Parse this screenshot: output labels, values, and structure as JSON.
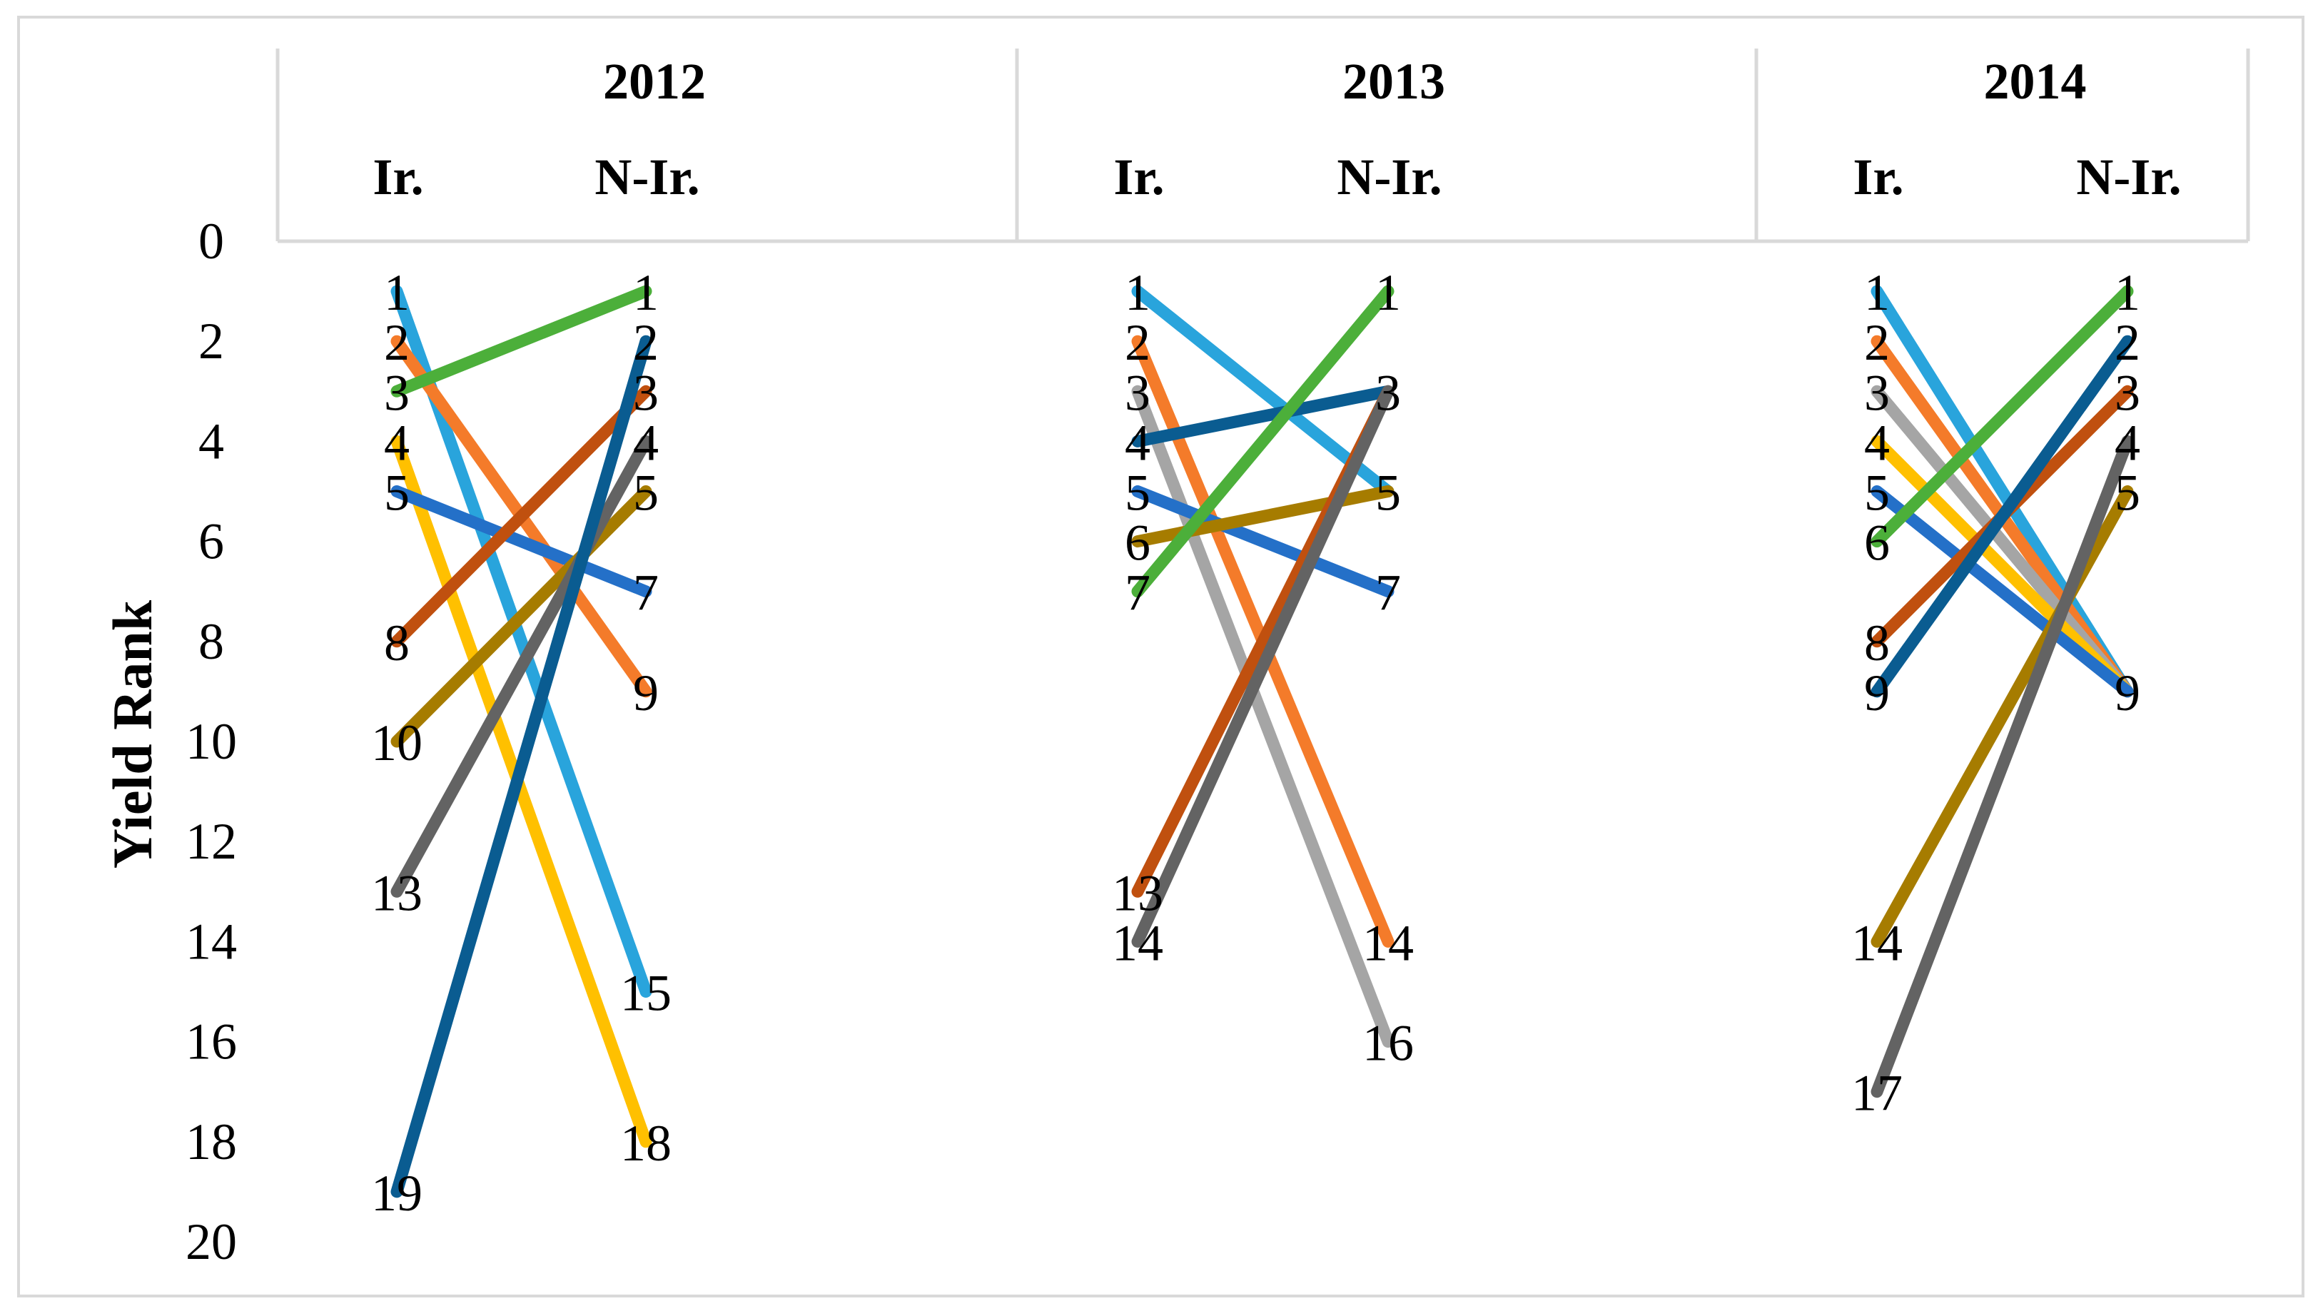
{
  "chart_data": {
    "type": "line",
    "ylabel": "Yield Rank",
    "ylim": [
      0,
      20
    ],
    "y_inverted": true,
    "yticks": [
      "0",
      "2",
      "4",
      "6",
      "8",
      "10",
      "12",
      "14",
      "16",
      "18",
      "20"
    ],
    "panels": [
      {
        "year": "2012",
        "x": [
          "Ir.",
          "N-Ir."
        ],
        "series": [
          {
            "color": "#29a4dc",
            "values": [
              1,
              15
            ]
          },
          {
            "color": "#f47b2a",
            "values": [
              2,
              9
            ]
          },
          {
            "color": "#4caf3a",
            "values": [
              3,
              1
            ]
          },
          {
            "color": "#ffc000",
            "values": [
              4,
              18
            ]
          },
          {
            "color": "#2470c8",
            "values": [
              5,
              7
            ]
          },
          {
            "color": "#c0500f",
            "values": [
              8,
              3
            ]
          },
          {
            "color": "#a67c00",
            "values": [
              10,
              5
            ]
          },
          {
            "color": "#636363",
            "values": [
              13,
              4
            ]
          },
          {
            "color": "#0a5c91",
            "values": [
              19,
              2
            ]
          }
        ]
      },
      {
        "year": "2013",
        "x": [
          "Ir.",
          "N-Ir."
        ],
        "series": [
          {
            "color": "#29a4dc",
            "values": [
              1,
              5
            ]
          },
          {
            "color": "#f47b2a",
            "values": [
              2,
              14
            ]
          },
          {
            "color": "#a5a5a5",
            "values": [
              3,
              16
            ]
          },
          {
            "color": "#0a5c91",
            "values": [
              4,
              3
            ]
          },
          {
            "color": "#2470c8",
            "values": [
              5,
              7
            ]
          },
          {
            "color": "#a67c00",
            "values": [
              6,
              5
            ]
          },
          {
            "color": "#4caf3a",
            "values": [
              7,
              1
            ]
          },
          {
            "color": "#c0500f",
            "values": [
              13,
              3
            ]
          },
          {
            "color": "#636363",
            "values": [
              14,
              3
            ]
          }
        ]
      },
      {
        "year": "2014",
        "x": [
          "Ir.",
          "N-Ir."
        ],
        "series": [
          {
            "color": "#29a4dc",
            "values": [
              1,
              9
            ]
          },
          {
            "color": "#f47b2a",
            "values": [
              2,
              9
            ]
          },
          {
            "color": "#a5a5a5",
            "values": [
              3,
              9
            ]
          },
          {
            "color": "#ffc000",
            "values": [
              4,
              9
            ]
          },
          {
            "color": "#2470c8",
            "values": [
              5,
              9
            ]
          },
          {
            "color": "#4caf3a",
            "values": [
              6,
              1
            ]
          },
          {
            "color": "#c0500f",
            "values": [
              8,
              3
            ]
          },
          {
            "color": "#0a5c91",
            "values": [
              9,
              2
            ]
          },
          {
            "color": "#a67c00",
            "values": [
              14,
              5
            ]
          },
          {
            "color": "#636363",
            "values": [
              17,
              4
            ]
          }
        ]
      }
    ]
  }
}
